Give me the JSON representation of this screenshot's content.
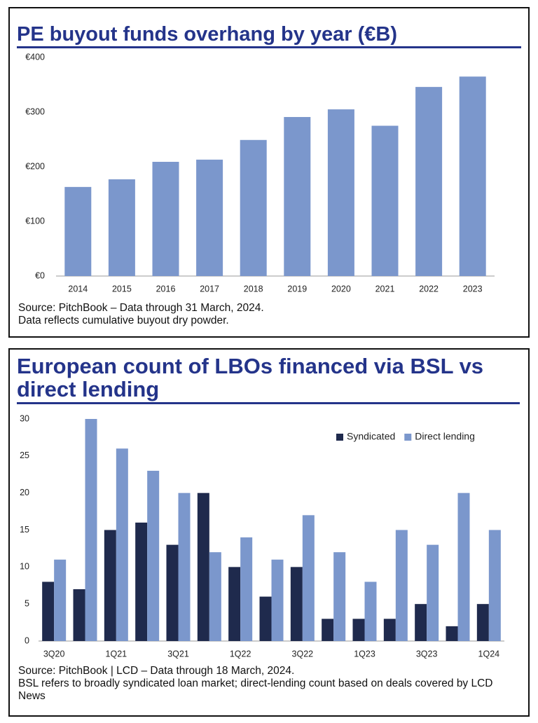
{
  "chart_data": [
    {
      "type": "bar",
      "title": "PE buyout funds overhang by year (€B)",
      "categories": [
        "2014",
        "2015",
        "2016",
        "2017",
        "2018",
        "2019",
        "2020",
        "2021",
        "2022",
        "2023"
      ],
      "values": [
        163,
        177,
        209,
        213,
        249,
        291,
        305,
        275,
        346,
        365
      ],
      "color": "#7b97cc",
      "ylim": [
        0,
        400
      ],
      "yticks": [
        {
          "value": 0,
          "label": "€0"
        },
        {
          "value": 100,
          "label": "€100"
        },
        {
          "value": 200,
          "label": "€200"
        },
        {
          "value": 300,
          "label": "€300"
        },
        {
          "value": 400,
          "label": "€400"
        }
      ],
      "grid": false,
      "notes": [
        "Source: PitchBook – Data through 31 March, 2024.",
        "Data reflects cumulative buyout dry powder."
      ]
    },
    {
      "type": "bar",
      "title": "European count of LBOs financed via BSL vs direct lending",
      "categories": [
        "3Q20",
        null,
        "1Q21",
        null,
        "3Q21",
        null,
        "1Q22",
        null,
        "3Q22",
        null,
        "1Q23",
        null,
        "3Q23",
        null,
        "1Q24"
      ],
      "series": [
        {
          "name": "Syndicated",
          "color": "#1f2a4d",
          "values": [
            8,
            7,
            15,
            16,
            13,
            20,
            10,
            6,
            10,
            3,
            3,
            3,
            5,
            2,
            5
          ]
        },
        {
          "name": "Direct lending",
          "color": "#7b97cc",
          "values": [
            11,
            30,
            26,
            23,
            20,
            12,
            14,
            11,
            17,
            12,
            8,
            15,
            13,
            20,
            15
          ]
        }
      ],
      "ylim": [
        0,
        30
      ],
      "yticks": [
        0,
        5,
        10,
        15,
        20,
        25,
        30
      ],
      "grid": false,
      "legend": "top-right",
      "notes": [
        "Source: PitchBook | LCD – Data through 18 March, 2024.",
        "BSL refers to broadly syndicated loan market; direct-lending count based on deals covered by LCD News"
      ]
    }
  ]
}
